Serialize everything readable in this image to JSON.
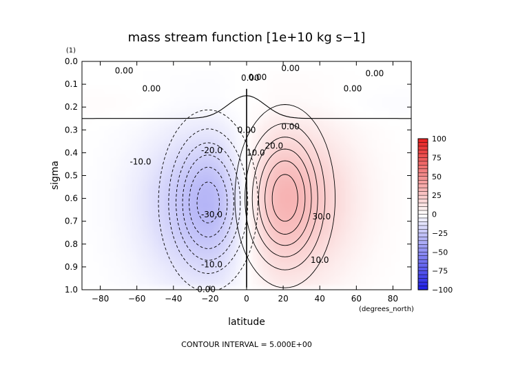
{
  "chart_data": {
    "type": "heatmap",
    "title": "mass stream function [1e+10 kg s−1]",
    "xlabel": "latitude",
    "ylabel": "sigma",
    "x_unit_note": "(degrees_north)",
    "y_unit_note": "(1)",
    "xlim": [
      -90,
      90
    ],
    "ylim": [
      0.0,
      1.0
    ],
    "y_inverted": true,
    "x_ticks": [
      -80,
      -60,
      -40,
      -20,
      0,
      20,
      40,
      60,
      80
    ],
    "x_tick_labels": [
      "−80",
      "−60",
      "−40",
      "−20",
      "0",
      "20",
      "40",
      "60",
      "80"
    ],
    "y_ticks": [
      0.0,
      0.1,
      0.2,
      0.3,
      0.4,
      0.5,
      0.6,
      0.7,
      0.8,
      0.9,
      1.0
    ],
    "y_tick_labels": [
      "0.0",
      "0.1",
      "0.2",
      "0.3",
      "0.4",
      "0.5",
      "0.6",
      "0.7",
      "0.8",
      "0.9",
      "1.0"
    ],
    "footer": "CONTOUR INTERVAL = 5.000E+00",
    "colorbar": {
      "min": -100,
      "max": 100,
      "step": 5,
      "ticks": [
        100,
        75,
        50,
        25,
        0,
        -25,
        -50,
        -75,
        -100
      ],
      "tick_labels": [
        "100",
        "75",
        "50",
        "25",
        "0",
        "−25",
        "−50",
        "−75",
        "−100"
      ],
      "colors": {
        "negative": "#1e1ee6",
        "zero": "#ffffff",
        "positive": "#e61e1e"
      }
    },
    "contour_interval": 5.0,
    "features": [
      {
        "type": "cell",
        "sign": "negative",
        "center": [
          -21,
          0.62
        ],
        "peak": -33,
        "name": "southern cell"
      },
      {
        "type": "cell",
        "sign": "positive",
        "center": [
          21,
          0.6
        ],
        "peak": 34,
        "name": "northern cell"
      }
    ],
    "contour_labels": [
      {
        "text": "0.00",
        "x": -22,
        "y": 0.998
      },
      {
        "text": "0.00",
        "x": -67,
        "y": 0.041
      },
      {
        "text": "0.00",
        "x": -52,
        "y": 0.12
      },
      {
        "text": "0.00",
        "x": 6,
        "y": 0.07
      },
      {
        "text": "0.00",
        "x": 24,
        "y": 0.03
      },
      {
        "text": "0.00",
        "x": 70,
        "y": 0.053
      },
      {
        "text": "0.00",
        "x": 2,
        "y": 0.073
      },
      {
        "text": "0.00",
        "x": 58,
        "y": 0.12
      },
      {
        "text": "0.00",
        "x": 24,
        "y": 0.285
      },
      {
        "text": "0.00",
        "x": 0,
        "y": 0.3
      },
      {
        "text": "-10.0",
        "x": -58,
        "y": 0.44
      },
      {
        "text": "-20.0",
        "x": -19,
        "y": 0.39
      },
      {
        "text": "-30.0",
        "x": -19,
        "y": 0.67
      },
      {
        "text": "-10.0",
        "x": -19,
        "y": 0.89
      },
      {
        "text": "10.0",
        "x": 5,
        "y": 0.4
      },
      {
        "text": "20.0",
        "x": 15,
        "y": 0.37
      },
      {
        "text": "30.0",
        "x": 41,
        "y": 0.68
      },
      {
        "text": "10.0",
        "x": 40,
        "y": 0.87
      }
    ]
  }
}
